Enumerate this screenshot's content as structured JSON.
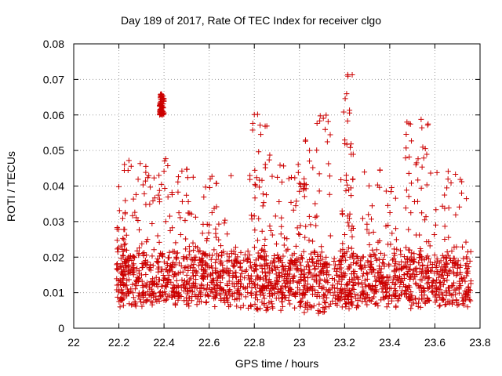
{
  "chart_data": {
    "type": "scatter",
    "title": "Day 189 of 2017, Rate Of TEC Index for receiver clgo",
    "xlabel": "GPS time / hours",
    "ylabel": "ROTI / TECUs",
    "xlim": [
      22,
      23.8
    ],
    "ylim": [
      0,
      0.08
    ],
    "x_ticks": [
      "22",
      "22.2",
      "22.4",
      "22.6",
      "22.8",
      "23",
      "23.2",
      "23.4",
      "23.6",
      "23.8"
    ],
    "y_ticks": [
      "0",
      "0.01",
      "0.02",
      "0.03",
      "0.04",
      "0.05",
      "0.06",
      "0.07",
      "0.08"
    ],
    "grid": true,
    "marker": "+",
    "color": "#cc0000",
    "x_range_of_points": [
      22.19,
      23.76
    ],
    "clusters": [
      {
        "x_center": 22.2,
        "x_spread": 0.03,
        "y_range": [
          0.008,
          0.04
        ]
      },
      {
        "x_center": 22.3,
        "x_spread": 0.08,
        "y_range": [
          0.007,
          0.048
        ]
      },
      {
        "x_center": 22.39,
        "x_spread": 0.01,
        "y_range": [
          0.06,
          0.066
        ]
      },
      {
        "x_center": 22.45,
        "x_spread": 0.08,
        "y_range": [
          0.007,
          0.049
        ]
      },
      {
        "x_center": 22.6,
        "x_spread": 0.1,
        "y_range": [
          0.006,
          0.043
        ]
      },
      {
        "x_center": 22.82,
        "x_spread": 0.05,
        "y_range": [
          0.005,
          0.061
        ]
      },
      {
        "x_center": 22.95,
        "x_spread": 0.08,
        "y_range": [
          0.005,
          0.047
        ]
      },
      {
        "x_center": 23.08,
        "x_spread": 0.06,
        "y_range": [
          0.004,
          0.06
        ]
      },
      {
        "x_center": 23.21,
        "x_spread": 0.03,
        "y_range": [
          0.006,
          0.073
        ]
      },
      {
        "x_center": 23.35,
        "x_spread": 0.08,
        "y_range": [
          0.006,
          0.045
        ]
      },
      {
        "x_center": 23.52,
        "x_spread": 0.05,
        "y_range": [
          0.008,
          0.059
        ]
      },
      {
        "x_center": 23.66,
        "x_spread": 0.09,
        "y_range": [
          0.006,
          0.045
        ]
      }
    ]
  }
}
